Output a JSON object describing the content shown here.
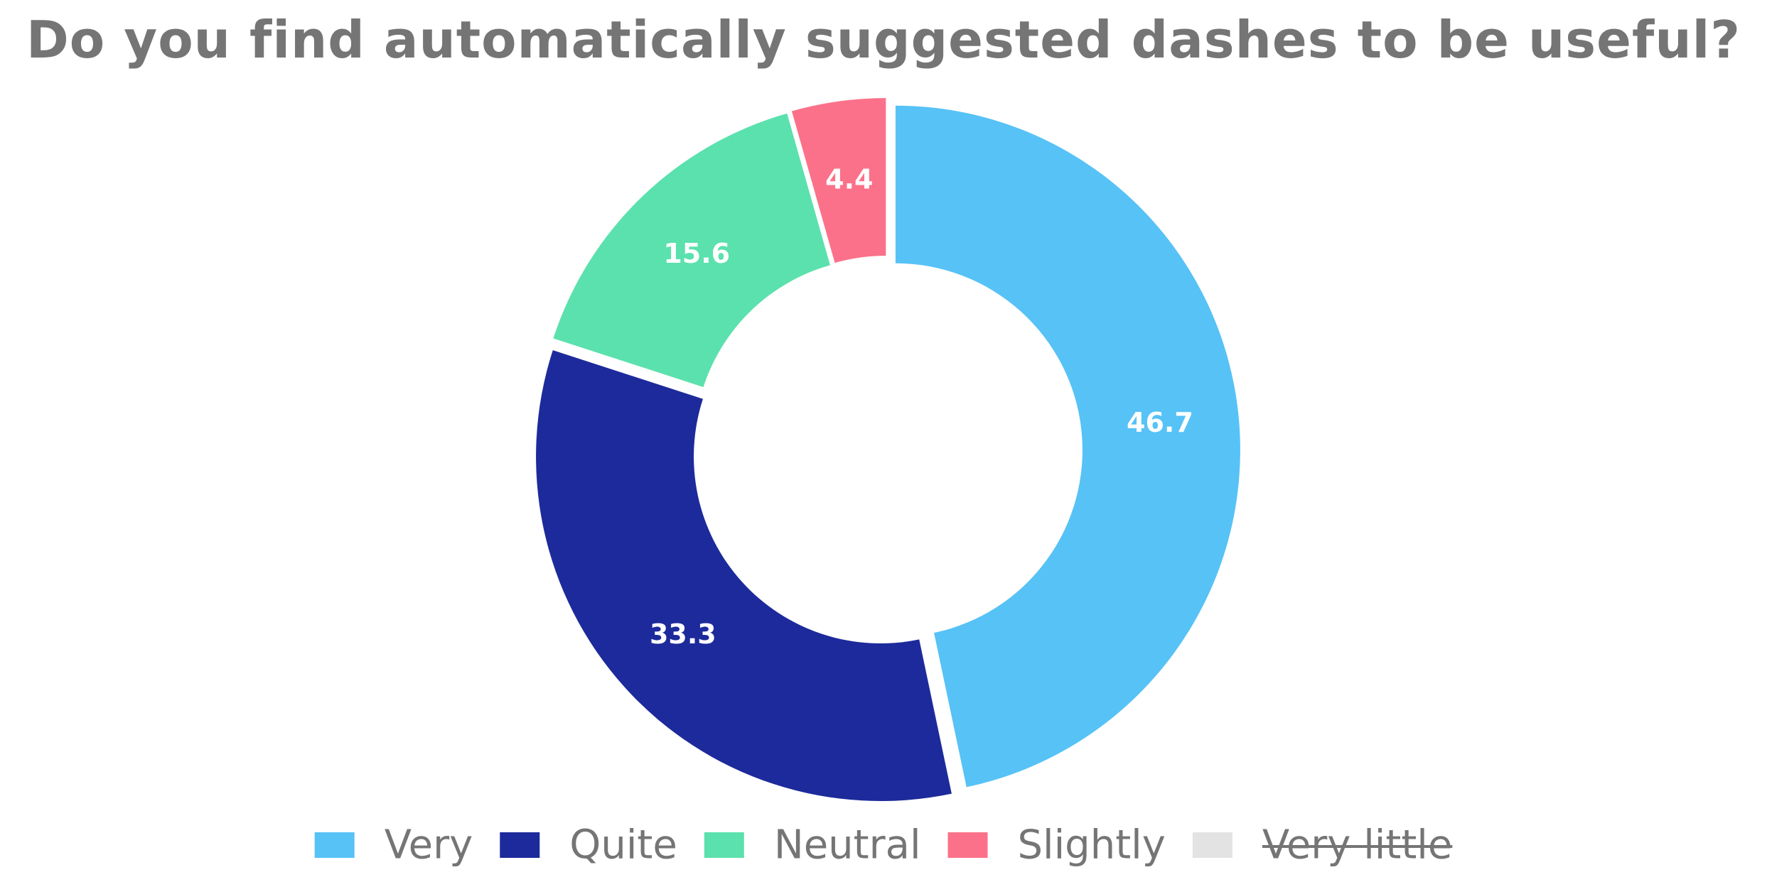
{
  "chart_data": {
    "type": "pie",
    "variant": "donut",
    "title": "Do you find automatically suggested dashes to be useful?",
    "slices": [
      {
        "label": "Very",
        "value": 46.7,
        "color": "#57c2f6",
        "visible": true
      },
      {
        "label": "Quite",
        "value": 33.3,
        "color": "#1d2a9b",
        "visible": true
      },
      {
        "label": "Neutral",
        "value": 15.6,
        "color": "#5be1ad",
        "visible": true
      },
      {
        "label": "Slightly",
        "value": 4.4,
        "color": "#fb7189",
        "visible": true
      },
      {
        "label": "Very little",
        "value": 0,
        "color": "#e3e3e3",
        "visible": false
      }
    ],
    "legend_position": "bottom",
    "data_labels": true
  }
}
